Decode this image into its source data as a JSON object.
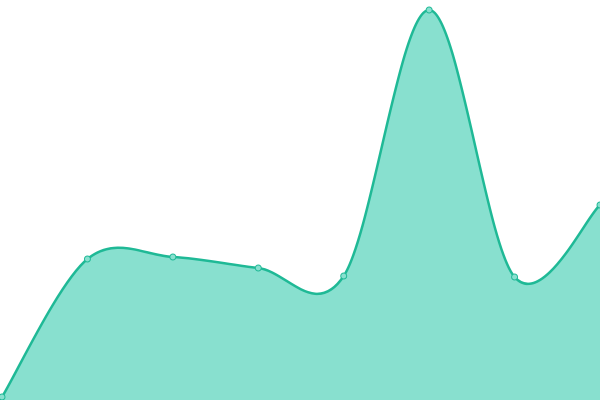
{
  "chart_data": {
    "type": "area",
    "values": [
      3,
      141,
      143,
      132,
      124,
      390,
      123,
      195
    ],
    "ylim": [
      0,
      400
    ],
    "color": "#1fb996",
    "fill": "#88e0cf"
  }
}
